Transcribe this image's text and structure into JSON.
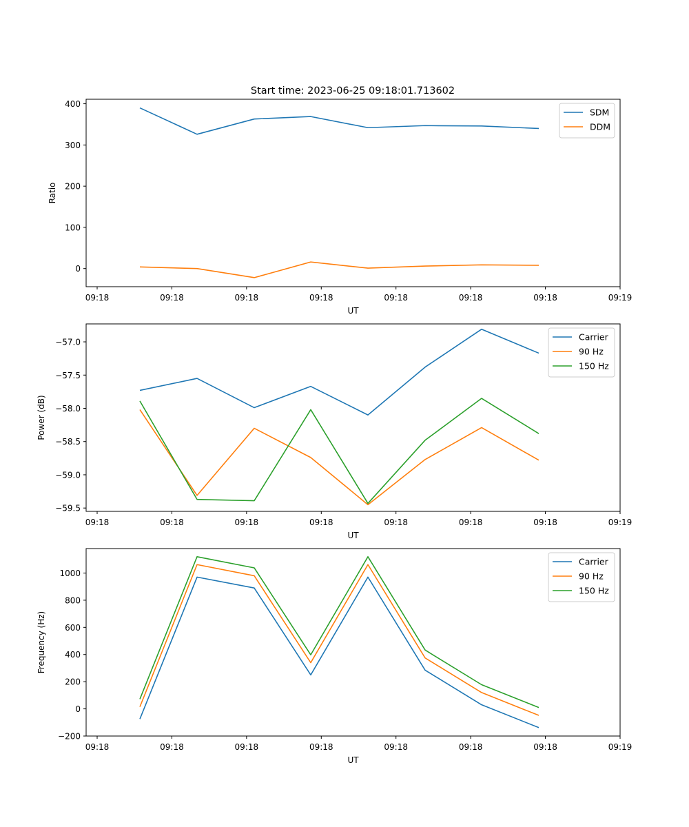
{
  "figure_title": "Start time: 2023-06-25 09:18:01.713602",
  "chart_data": [
    {
      "type": "line",
      "title": "Start time: 2023-06-25 09:18:01.713602",
      "xlabel": "UT",
      "ylabel": "Ratio",
      "x_tick_labels": [
        "09:18",
        "09:18",
        "09:18",
        "09:18",
        "09:18",
        "09:18",
        "09:18",
        "09:19"
      ],
      "y_ticks": [
        0,
        100,
        200,
        300,
        400
      ],
      "y_tick_labels": [
        "0",
        "100",
        "200",
        "300",
        "400"
      ],
      "ylim": [
        -44,
        411
      ],
      "x_points": 8,
      "legend_position": "top-right",
      "grid": false,
      "series": [
        {
          "name": "SDM",
          "color": "#1f77b4",
          "values": [
            390,
            326,
            363,
            369,
            342,
            347,
            346,
            340
          ]
        },
        {
          "name": "DDM",
          "color": "#ff7f0e",
          "values": [
            4,
            0,
            -22,
            16,
            1,
            6,
            9,
            8
          ]
        }
      ]
    },
    {
      "type": "line",
      "title": "",
      "xlabel": "UT",
      "ylabel": "Power (dB)",
      "x_tick_labels": [
        "09:18",
        "09:18",
        "09:18",
        "09:18",
        "09:18",
        "09:18",
        "09:18",
        "09:19"
      ],
      "y_ticks": [
        -59.5,
        -59.0,
        -58.5,
        -58.0,
        -57.5,
        -57.0
      ],
      "y_tick_labels": [
        "−59.5",
        "−59.0",
        "−58.5",
        "−58.0",
        "−57.5",
        "−57.0"
      ],
      "ylim": [
        -59.55,
        -56.73
      ],
      "x_points": 8,
      "legend_position": "top-right",
      "grid": false,
      "series": [
        {
          "name": "Carrier",
          "color": "#1f77b4",
          "values": [
            -57.73,
            -57.55,
            -57.99,
            -57.67,
            -58.1,
            -57.38,
            -56.81,
            -57.17
          ]
        },
        {
          "name": "90 Hz",
          "color": "#ff7f0e",
          "values": [
            -58.02,
            -59.31,
            -58.3,
            -58.74,
            -59.45,
            -58.77,
            -58.29,
            -58.78
          ]
        },
        {
          "name": "150 Hz",
          "color": "#2ca02c",
          "values": [
            -57.89,
            -59.37,
            -59.39,
            -58.02,
            -59.43,
            -58.48,
            -57.85,
            -58.38
          ]
        }
      ]
    },
    {
      "type": "line",
      "title": "",
      "xlabel": "UT",
      "ylabel": "Frequency (Hz)",
      "x_tick_labels": [
        "09:18",
        "09:18",
        "09:18",
        "09:18",
        "09:18",
        "09:18",
        "09:18",
        "09:19"
      ],
      "y_ticks": [
        -200,
        0,
        200,
        400,
        600,
        800,
        1000
      ],
      "y_tick_labels": [
        "−200",
        "0",
        "200",
        "400",
        "600",
        "800",
        "1000"
      ],
      "ylim": [
        -200,
        1180
      ],
      "x_points": 8,
      "legend_position": "top-right",
      "grid": false,
      "series": [
        {
          "name": "Carrier",
          "color": "#1f77b4",
          "values": [
            -75,
            970,
            890,
            250,
            970,
            285,
            30,
            -138
          ]
        },
        {
          "name": "90 Hz",
          "color": "#ff7f0e",
          "values": [
            15,
            1062,
            980,
            340,
            1062,
            375,
            120,
            -48
          ]
        },
        {
          "name": "150 Hz",
          "color": "#2ca02c",
          "values": [
            72,
            1120,
            1038,
            398,
            1120,
            433,
            178,
            10
          ]
        }
      ]
    }
  ]
}
